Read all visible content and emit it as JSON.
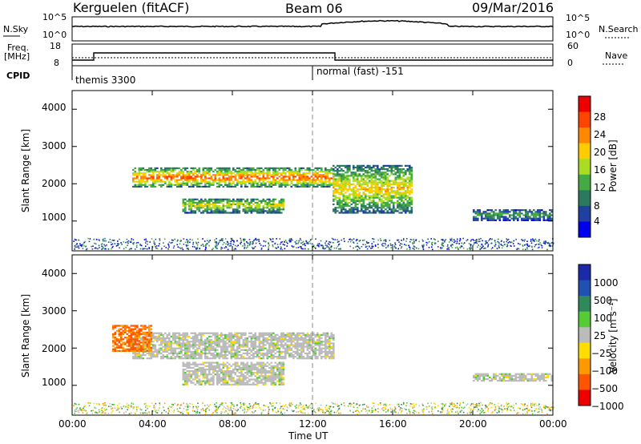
{
  "header": {
    "station": "Kerguelen (fitACF)",
    "beam": "Beam 06",
    "date": "09/Mar/2016"
  },
  "summary_panel": {
    "nsky_label": "N.Sky",
    "nsky_ticks": [
      "10^5",
      "10^0"
    ],
    "nsearch_label": "N.Search",
    "nsearch_ticks": [
      "10^5",
      "10^0"
    ],
    "freq_label": "Freq.",
    "freq_unit": "[MHz]",
    "freq_ticks": [
      "18",
      "8"
    ],
    "nave_label": "Nave",
    "nave_ticks": [
      "60",
      "0"
    ],
    "cpid_label": "CPID",
    "cpid_segments": [
      "themis 3300",
      "normal (fast) -151"
    ]
  },
  "time_axis": {
    "label": "Time UT",
    "ticks": [
      "00:00",
      "04:00",
      "08:00",
      "12:00",
      "16:00",
      "20:00",
      "00:00"
    ]
  },
  "power_panel": {
    "ylabel": "Slant Range [km]",
    "yticks": [
      "4000",
      "3000",
      "2000",
      "1000"
    ],
    "cbar_label": "Power [dB]",
    "cbar_ticks": [
      "28",
      "24",
      "20",
      "16",
      "12",
      "8",
      "4"
    ],
    "cbar_colors": [
      "#0000ee",
      "#2040a0",
      "#2a7a60",
      "#44aa44",
      "#aadd22",
      "#ffcc00",
      "#ff8800",
      "#ff4400",
      "#ee0000"
    ]
  },
  "velocity_panel": {
    "ylabel": "Slant Range [km]",
    "yticks": [
      "4000",
      "3000",
      "2000",
      "1000"
    ],
    "cbar_label": "Velocity [m s⁻¹]",
    "cbar_ticks": [
      "1000",
      "500",
      "100",
      "25",
      "−25",
      "−100",
      "−500",
      "−1000"
    ],
    "cbar_colors": [
      "#1a2aa8",
      "#2050b0",
      "#2e8a5a",
      "#55cc33",
      "#bbbbbb",
      "#ffdd00",
      "#ff9900",
      "#ff5500",
      "#ee0000"
    ]
  },
  "chart_data": [
    {
      "type": "heatmap",
      "title": "Power",
      "xlabel": "Time UT",
      "ylabel": "Slant Range [km]",
      "xlim": [
        "00:00",
        "24:00"
      ],
      "ylim": [
        200,
        4500
      ],
      "zlabel": "Power [dB]",
      "zlim": [
        0,
        32
      ],
      "features": [
        {
          "t_start": 3.0,
          "t_end": 13.0,
          "range": [
            1900,
            2400
          ],
          "power": 26
        },
        {
          "t_start": 5.5,
          "t_end": 10.5,
          "range": [
            1200,
            1600
          ],
          "power": 18
        },
        {
          "t_start": 13.0,
          "t_end": 17.0,
          "range": [
            1200,
            2500
          ],
          "power": 20
        },
        {
          "t_start": 20.0,
          "t_end": 24.0,
          "range": [
            1000,
            1300
          ],
          "power": 12
        }
      ]
    },
    {
      "type": "heatmap",
      "title": "Velocity",
      "xlabel": "Time UT",
      "ylabel": "Slant Range [km]",
      "xlim": [
        "00:00",
        "24:00"
      ],
      "ylim": [
        200,
        4500
      ],
      "zlabel": "Velocity [m s-1]",
      "zlim": [
        -1000,
        1000
      ],
      "features": [
        {
          "t_start": 3.0,
          "t_end": 13.0,
          "range": [
            1700,
            2400
          ],
          "velocity": 0
        },
        {
          "t_start": 2.0,
          "t_end": 4.0,
          "range": [
            1900,
            2600
          ],
          "velocity": -500
        },
        {
          "t_start": 5.5,
          "t_end": 10.5,
          "range": [
            1000,
            1600
          ],
          "velocity": 0
        },
        {
          "t_start": 20.0,
          "t_end": 24.0,
          "range": [
            1100,
            1300
          ],
          "velocity": 0
        }
      ]
    }
  ]
}
